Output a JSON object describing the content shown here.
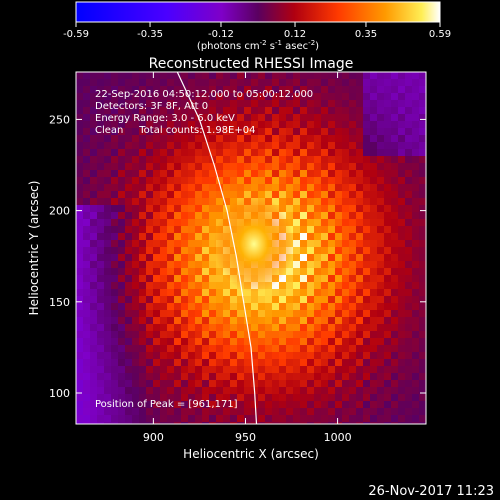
{
  "colorbar": {
    "ticks": [
      "-0.59",
      "-0.35",
      "-0.12",
      "0.12",
      "0.35",
      "0.59"
    ],
    "range": [
      -0.59,
      0.59
    ],
    "unit_label": {
      "prefix": "(photons cm",
      "exp1": "-2",
      "mid1": " s",
      "exp2": "-1",
      "mid2": " asec",
      "exp3": "-2",
      "suffix": ")"
    }
  },
  "chart_data": {
    "type": "heatmap",
    "title": "Reconstructed RHESSI Image",
    "xlabel": "Heliocentric X (arcsec)",
    "ylabel": "Heliocentric Y (arcsec)",
    "xlim": [
      858,
      1048
    ],
    "ylim": [
      83,
      276
    ],
    "xticks": [
      900,
      950,
      1000
    ],
    "yticks": [
      100,
      150,
      200,
      250
    ],
    "peak": {
      "x": 961,
      "y": 171,
      "label": "Position of Peak = [961,171]"
    },
    "limb": [
      [
        913,
        276
      ],
      [
        925,
        250
      ],
      [
        933,
        225
      ],
      [
        940,
        200
      ],
      [
        945,
        175
      ],
      [
        949,
        150
      ],
      [
        953,
        125
      ],
      [
        955,
        100
      ],
      [
        956,
        83
      ]
    ],
    "annotations": [
      "22-Sep-2016 04:50:12.000 to 05:00:12.000",
      "Detectors: 3F 8F, Att 0",
      "Energy Range: 3.0 - 6.0 keV",
      "Clean     Total counts: 1.98E+04"
    ]
  },
  "footer_date": "26-Nov-2017 11:23"
}
